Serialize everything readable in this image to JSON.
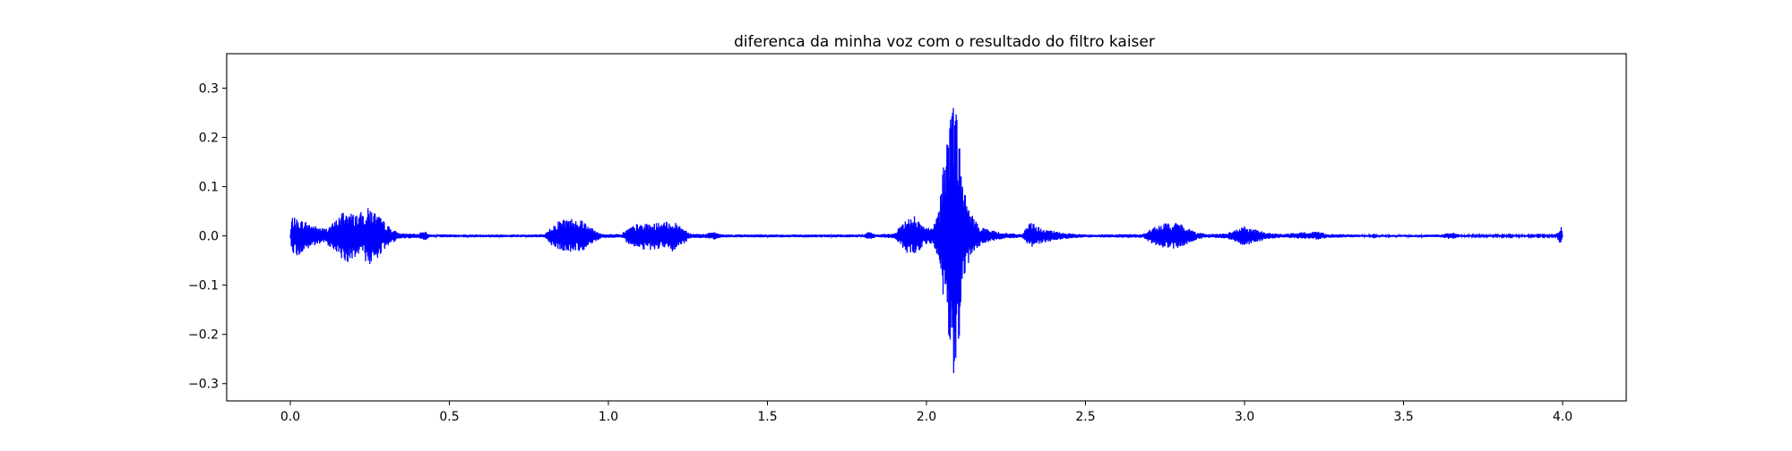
{
  "chart_data": {
    "type": "line",
    "title": "diferenca da minha voz com o resultado do filtro kaiser",
    "xlabel": "",
    "ylabel": "",
    "xlim": [
      -0.2,
      4.2
    ],
    "ylim": [
      -0.335,
      0.37
    ],
    "xticks": [
      0.0,
      0.5,
      1.0,
      1.5,
      2.0,
      2.5,
      3.0,
      3.5,
      4.0
    ],
    "xtick_labels": [
      "0.0",
      "0.5",
      "1.0",
      "1.5",
      "2.0",
      "2.5",
      "3.0",
      "3.5",
      "4.0"
    ],
    "yticks": [
      0.3,
      0.2,
      0.1,
      0.0,
      -0.1,
      -0.2,
      -0.3
    ],
    "ytick_labels": [
      "0.3",
      "0.2",
      "0.1",
      "0.0",
      "−0.1",
      "−0.2",
      "−0.3"
    ],
    "grid": false,
    "legend": "none",
    "series_color": "#0000ff",
    "x_range": [
      0.0,
      4.0
    ],
    "series": [
      {
        "name": "",
        "envelope": [
          {
            "x": 0.0,
            "upper": 0.003,
            "lower": -0.003
          },
          {
            "x": 0.005,
            "upper": 0.04,
            "lower": -0.03
          },
          {
            "x": 0.02,
            "upper": 0.035,
            "lower": -0.045
          },
          {
            "x": 0.05,
            "upper": 0.03,
            "lower": -0.03
          },
          {
            "x": 0.08,
            "upper": 0.02,
            "lower": -0.02
          },
          {
            "x": 0.11,
            "upper": 0.015,
            "lower": -0.015
          },
          {
            "x": 0.14,
            "upper": 0.03,
            "lower": -0.03
          },
          {
            "x": 0.17,
            "upper": 0.055,
            "lower": -0.055
          },
          {
            "x": 0.2,
            "upper": 0.045,
            "lower": -0.05
          },
          {
            "x": 0.23,
            "upper": 0.05,
            "lower": -0.045
          },
          {
            "x": 0.25,
            "upper": 0.06,
            "lower": -0.065
          },
          {
            "x": 0.28,
            "upper": 0.04,
            "lower": -0.04
          },
          {
            "x": 0.31,
            "upper": 0.02,
            "lower": -0.02
          },
          {
            "x": 0.34,
            "upper": 0.006,
            "lower": -0.006
          },
          {
            "x": 0.4,
            "upper": 0.004,
            "lower": -0.004
          },
          {
            "x": 0.42,
            "upper": 0.012,
            "lower": -0.01
          },
          {
            "x": 0.44,
            "upper": 0.003,
            "lower": -0.003
          },
          {
            "x": 0.8,
            "upper": 0.003,
            "lower": -0.003
          },
          {
            "x": 0.82,
            "upper": 0.02,
            "lower": -0.02
          },
          {
            "x": 0.85,
            "upper": 0.035,
            "lower": -0.03
          },
          {
            "x": 0.89,
            "upper": 0.037,
            "lower": -0.035
          },
          {
            "x": 0.92,
            "upper": 0.035,
            "lower": -0.03
          },
          {
            "x": 0.95,
            "upper": 0.015,
            "lower": -0.015
          },
          {
            "x": 0.98,
            "upper": 0.004,
            "lower": -0.004
          },
          {
            "x": 1.04,
            "upper": 0.004,
            "lower": -0.004
          },
          {
            "x": 1.06,
            "upper": 0.015,
            "lower": -0.015
          },
          {
            "x": 1.09,
            "upper": 0.025,
            "lower": -0.025
          },
          {
            "x": 1.13,
            "upper": 0.025,
            "lower": -0.03
          },
          {
            "x": 1.17,
            "upper": 0.028,
            "lower": -0.025
          },
          {
            "x": 1.2,
            "upper": 0.03,
            "lower": -0.035
          },
          {
            "x": 1.23,
            "upper": 0.02,
            "lower": -0.02
          },
          {
            "x": 1.26,
            "upper": 0.005,
            "lower": -0.005
          },
          {
            "x": 1.3,
            "upper": 0.004,
            "lower": -0.004
          },
          {
            "x": 1.33,
            "upper": 0.008,
            "lower": -0.008
          },
          {
            "x": 1.36,
            "upper": 0.003,
            "lower": -0.003
          },
          {
            "x": 1.8,
            "upper": 0.003,
            "lower": -0.003
          },
          {
            "x": 1.82,
            "upper": 0.01,
            "lower": -0.008
          },
          {
            "x": 1.84,
            "upper": 0.003,
            "lower": -0.003
          },
          {
            "x": 1.9,
            "upper": 0.005,
            "lower": -0.005
          },
          {
            "x": 1.93,
            "upper": 0.03,
            "lower": -0.03
          },
          {
            "x": 1.96,
            "upper": 0.045,
            "lower": -0.045
          },
          {
            "x": 1.99,
            "upper": 0.02,
            "lower": -0.02
          },
          {
            "x": 2.02,
            "upper": 0.015,
            "lower": -0.015
          },
          {
            "x": 2.04,
            "upper": 0.06,
            "lower": -0.06
          },
          {
            "x": 2.06,
            "upper": 0.2,
            "lower": -0.18
          },
          {
            "x": 2.075,
            "upper": 0.26,
            "lower": -0.26
          },
          {
            "x": 2.082,
            "upper": 0.335,
            "lower": -0.3
          },
          {
            "x": 2.09,
            "upper": 0.28,
            "lower": -0.29
          },
          {
            "x": 2.1,
            "upper": 0.25,
            "lower": -0.26
          },
          {
            "x": 2.11,
            "upper": 0.13,
            "lower": -0.12
          },
          {
            "x": 2.13,
            "upper": 0.06,
            "lower": -0.06
          },
          {
            "x": 2.16,
            "upper": 0.025,
            "lower": -0.025
          },
          {
            "x": 2.2,
            "upper": 0.012,
            "lower": -0.012
          },
          {
            "x": 2.25,
            "upper": 0.006,
            "lower": -0.006
          },
          {
            "x": 2.3,
            "upper": 0.004,
            "lower": -0.004
          },
          {
            "x": 2.33,
            "upper": 0.03,
            "lower": -0.025
          },
          {
            "x": 2.36,
            "upper": 0.015,
            "lower": -0.015
          },
          {
            "x": 2.4,
            "upper": 0.01,
            "lower": -0.01
          },
          {
            "x": 2.45,
            "upper": 0.005,
            "lower": -0.005
          },
          {
            "x": 2.5,
            "upper": 0.003,
            "lower": -0.003
          },
          {
            "x": 2.68,
            "upper": 0.004,
            "lower": -0.004
          },
          {
            "x": 2.72,
            "upper": 0.02,
            "lower": -0.02
          },
          {
            "x": 2.76,
            "upper": 0.028,
            "lower": -0.028
          },
          {
            "x": 2.8,
            "upper": 0.025,
            "lower": -0.025
          },
          {
            "x": 2.84,
            "upper": 0.01,
            "lower": -0.01
          },
          {
            "x": 2.88,
            "upper": 0.004,
            "lower": -0.004
          },
          {
            "x": 2.94,
            "upper": 0.005,
            "lower": -0.005
          },
          {
            "x": 2.97,
            "upper": 0.012,
            "lower": -0.012
          },
          {
            "x": 3.0,
            "upper": 0.02,
            "lower": -0.02
          },
          {
            "x": 3.04,
            "upper": 0.012,
            "lower": -0.012
          },
          {
            "x": 3.08,
            "upper": 0.006,
            "lower": -0.006
          },
          {
            "x": 3.12,
            "upper": 0.004,
            "lower": -0.004
          },
          {
            "x": 3.23,
            "upper": 0.01,
            "lower": -0.008
          },
          {
            "x": 3.26,
            "upper": 0.004,
            "lower": -0.004
          },
          {
            "x": 3.4,
            "upper": 0.002,
            "lower": -0.002
          },
          {
            "x": 3.62,
            "upper": 0.003,
            "lower": -0.003
          },
          {
            "x": 3.65,
            "upper": 0.008,
            "lower": -0.008
          },
          {
            "x": 3.68,
            "upper": 0.002,
            "lower": -0.002
          },
          {
            "x": 3.98,
            "upper": 0.002,
            "lower": -0.002
          },
          {
            "x": 3.995,
            "upper": 0.02,
            "lower": -0.02
          },
          {
            "x": 4.0,
            "upper": 0.002,
            "lower": -0.002
          }
        ]
      }
    ]
  }
}
